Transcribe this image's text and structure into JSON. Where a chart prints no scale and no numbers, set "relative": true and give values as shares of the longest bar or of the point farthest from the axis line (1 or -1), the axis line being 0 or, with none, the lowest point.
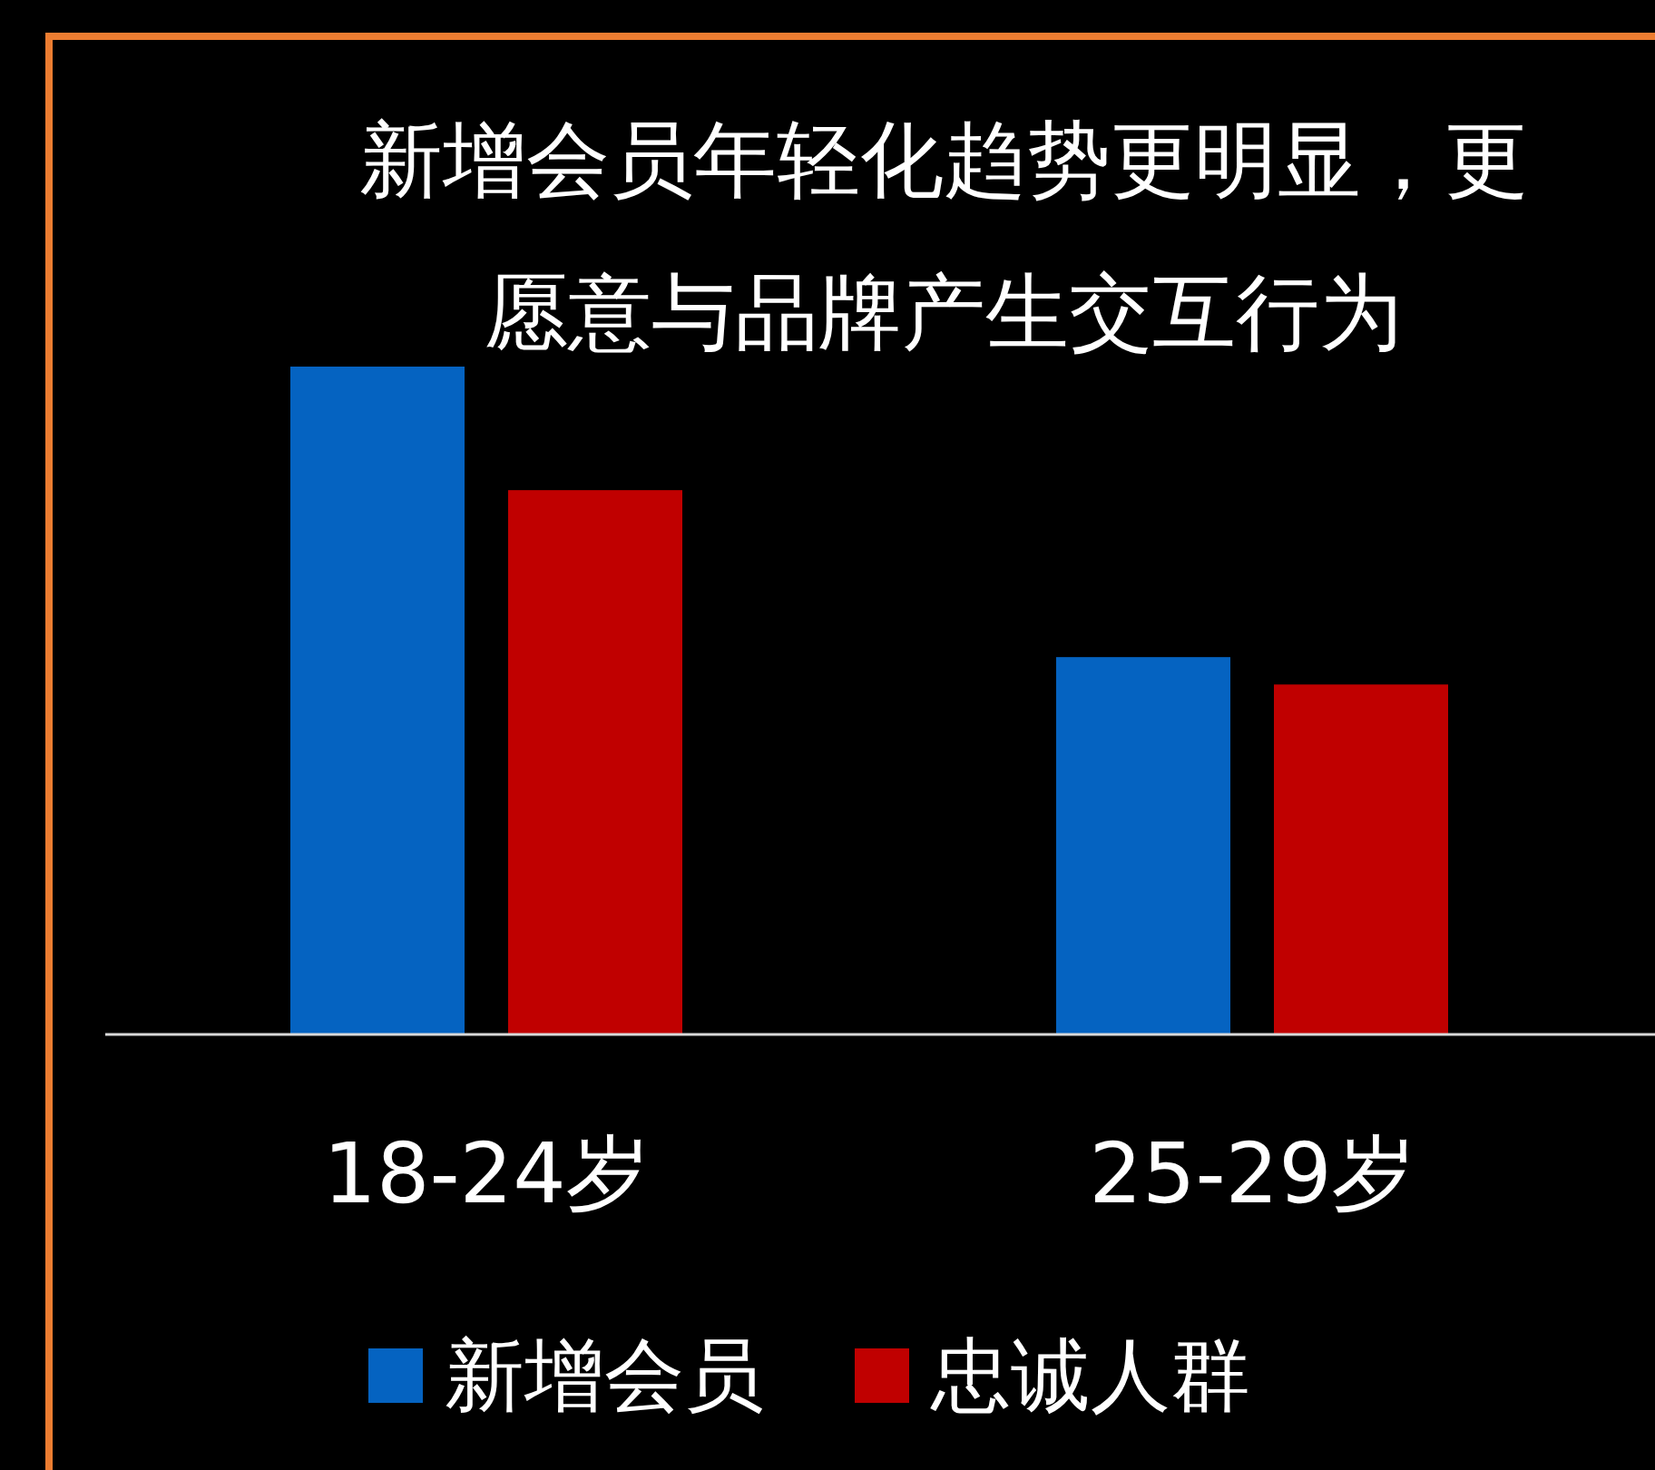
{
  "chart_data": {
    "type": "bar",
    "title": "新增会员年轻化趋势更明显，更愿意与品牌产生交互行为",
    "categories": [
      "18-24岁",
      "25-29岁"
    ],
    "relative": true,
    "legend": "bottom",
    "series": [
      {
        "name": "新增会员",
        "color": "#0563c1",
        "values": [
          1,
          0.565
        ]
      },
      {
        "name": "忠诚人群",
        "color": "#c00000",
        "values": [
          0.815,
          0.524
        ]
      }
    ]
  }
}
